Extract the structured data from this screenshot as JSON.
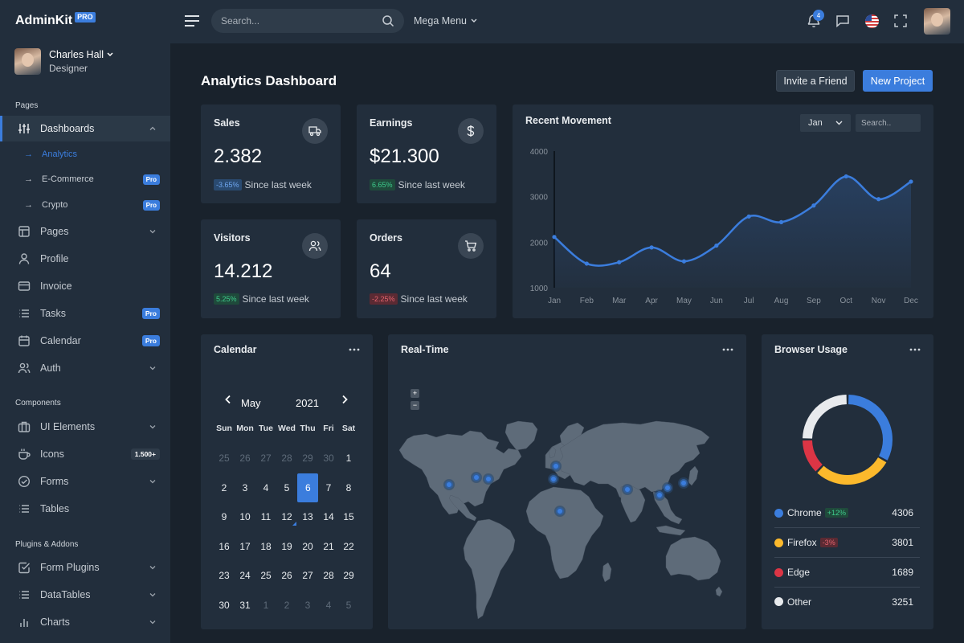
{
  "brand": {
    "name": "AdminKit",
    "badge": "PRO"
  },
  "user": {
    "name": "Charles Hall",
    "role": "Designer"
  },
  "sidebar": {
    "sections": [
      "Pages",
      "Components",
      "Plugins & Addons"
    ],
    "items": [
      {
        "label": "Dashboards",
        "icon": "sliders-icon"
      },
      {
        "label": "Pages",
        "icon": "layout-icon"
      },
      {
        "label": "Profile",
        "icon": "user-icon"
      },
      {
        "label": "Invoice",
        "icon": "credit-card-icon"
      },
      {
        "label": "Tasks",
        "icon": "list-icon",
        "badge": "Pro"
      },
      {
        "label": "Calendar",
        "icon": "calendar-icon",
        "badge": "Pro"
      },
      {
        "label": "Auth",
        "icon": "users-icon"
      },
      {
        "label": "UI Elements",
        "icon": "briefcase-icon"
      },
      {
        "label": "Icons",
        "icon": "coffee-icon",
        "badge": "1.500+"
      },
      {
        "label": "Forms",
        "icon": "check-circle-icon"
      },
      {
        "label": "Tables",
        "icon": "list-icon"
      },
      {
        "label": "Form Plugins",
        "icon": "check-square-icon"
      },
      {
        "label": "DataTables",
        "icon": "list-icon"
      },
      {
        "label": "Charts",
        "icon": "bar-chart-icon"
      }
    ],
    "sub_items": [
      {
        "label": "Analytics"
      },
      {
        "label": "E-Commerce",
        "badge": "Pro"
      },
      {
        "label": "Crypto",
        "badge": "Pro"
      }
    ]
  },
  "topbar": {
    "search_placeholder": "Search...",
    "mega_menu": "Mega Menu",
    "notifications": "4"
  },
  "header": {
    "title_bold": "Analytics",
    "title_rest": " Dashboard",
    "invite": "Invite a Friend",
    "new_project": "New Project"
  },
  "stats": [
    {
      "title": "Sales",
      "value": "2.382",
      "change": "-3.65%",
      "since": "Since last week",
      "icon": "truck-icon"
    },
    {
      "title": "Earnings",
      "value": "$21.300",
      "change": "6.65%",
      "since": "Since last week",
      "icon": "dollar-sign-icon"
    },
    {
      "title": "Visitors",
      "value": "14.212",
      "change": "5.25%",
      "since": "Since last week",
      "icon": "users-icon"
    },
    {
      "title": "Orders",
      "value": "64",
      "change": "-2.25%",
      "since": "Since last week",
      "icon": "shopping-cart-icon"
    }
  ],
  "movement": {
    "title": "Recent Movement",
    "month": "Jan",
    "search_placeholder": "Search.."
  },
  "chart_data": {
    "type": "area",
    "title": "Recent Movement",
    "categories": [
      "Jan",
      "Feb",
      "Mar",
      "Apr",
      "May",
      "Jun",
      "Jul",
      "Aug",
      "Sep",
      "Oct",
      "Nov",
      "Dec"
    ],
    "series": [
      {
        "values": [
          2115,
          1530,
          1560,
          1885,
          1580,
          1925,
          2565,
          2440,
          2805,
          3445,
          2945,
          3330
        ]
      }
    ],
    "yticks": [
      "4000",
      "3000",
      "2000",
      "1000"
    ],
    "ylim": [
      1000,
      4000
    ],
    "color": "#3b7ddd",
    "grid": false
  },
  "calendar": {
    "title": "Calendar",
    "month": "May",
    "year": "2021",
    "dow": [
      "Sun",
      "Mon",
      "Tue",
      "Wed",
      "Thu",
      "Fri",
      "Sat"
    ],
    "weeks": [
      [
        "25",
        "26",
        "27",
        "28",
        "29",
        "30",
        "1"
      ],
      [
        "2",
        "3",
        "4",
        "5",
        "6",
        "7",
        "8"
      ],
      [
        "9",
        "10",
        "11",
        "12",
        "13",
        "14",
        "15"
      ],
      [
        "16",
        "17",
        "18",
        "19",
        "20",
        "21",
        "22"
      ],
      [
        "23",
        "24",
        "25",
        "26",
        "27",
        "28",
        "29"
      ],
      [
        "30",
        "31",
        "1",
        "2",
        "3",
        "4",
        "5"
      ]
    ]
  },
  "realtime": {
    "title": "Real-Time",
    "zoom_in": "+",
    "zoom_out": "−"
  },
  "browser": {
    "title": "Browser Usage",
    "rows": [
      {
        "name": "Chrome",
        "change": "+12%",
        "value": "4306",
        "color": "#3b7ddd"
      },
      {
        "name": "Firefox",
        "change": "-3%",
        "value": "3801",
        "color": "#fcb92c"
      },
      {
        "name": "Edge",
        "change": "",
        "value": "1689",
        "color": "#dc3545"
      },
      {
        "name": "Other",
        "change": "",
        "value": "3251",
        "color": "#e8eaed"
      }
    ]
  }
}
